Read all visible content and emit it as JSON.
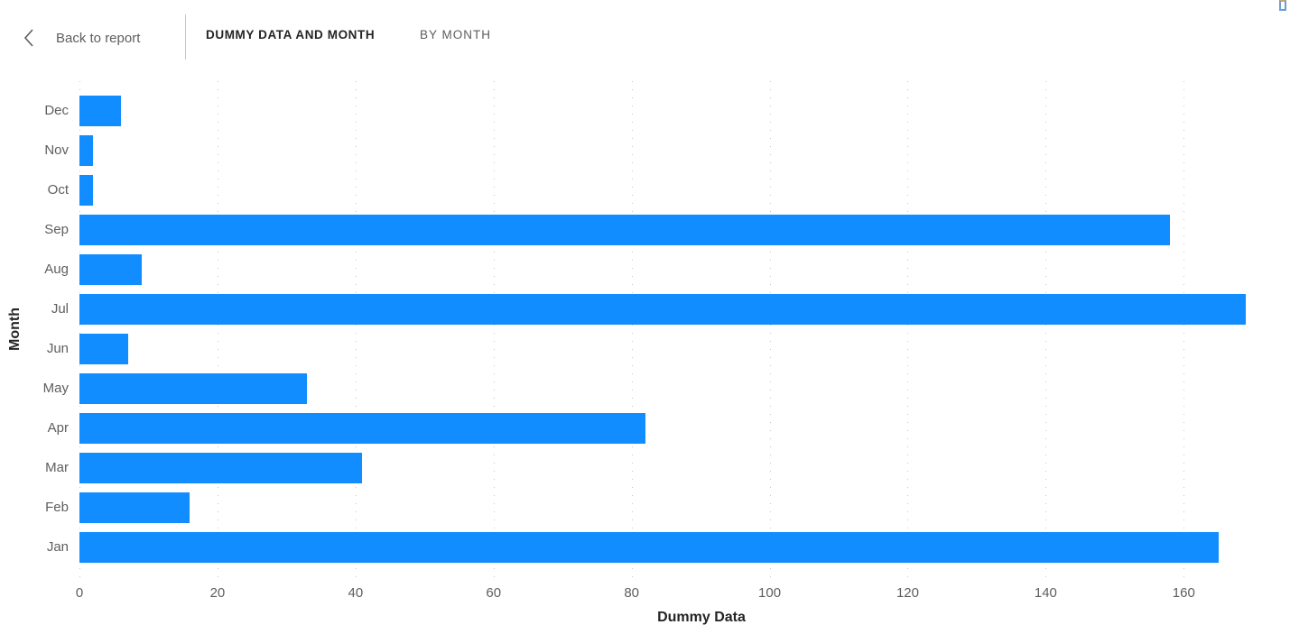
{
  "header": {
    "back_label": "Back to report",
    "title": "DUMMY DATA AND MONTH",
    "subtitle": "BY MONTH"
  },
  "colors": {
    "bar": "#118DFF",
    "text_dark": "#252423",
    "text_gray": "#605E5C",
    "gridline": "#C8C6C4"
  },
  "chart_data": {
    "type": "bar",
    "orientation": "horizontal",
    "title": "DUMMY DATA AND MONTH BY MONTH",
    "xlabel": "Dummy Data",
    "ylabel": "Month",
    "categories": [
      "Dec",
      "Nov",
      "Oct",
      "Sep",
      "Aug",
      "Jul",
      "Jun",
      "May",
      "Apr",
      "Mar",
      "Feb",
      "Jan"
    ],
    "values": [
      6,
      2,
      2,
      158,
      9,
      169,
      7,
      33,
      82,
      41,
      16,
      165
    ],
    "xticks": [
      0,
      20,
      40,
      60,
      80,
      100,
      120,
      140,
      160
    ],
    "xlim": [
      0,
      175
    ],
    "grid": "dotted-vertical",
    "legend": "none",
    "bar_color": "#118DFF"
  }
}
